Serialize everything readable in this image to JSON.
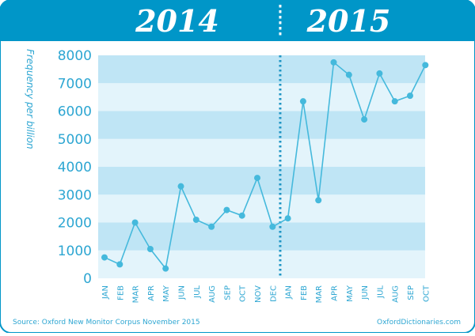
{
  "chart_data": {
    "type": "line",
    "title": "",
    "xlabel": "",
    "ylabel": "Frequency per billion",
    "ylim": [
      0,
      8000
    ],
    "yticks": [
      0,
      1000,
      2000,
      3000,
      4000,
      5000,
      6000,
      7000,
      8000
    ],
    "groups": [
      {
        "label": "2014",
        "categories": [
          "JAN",
          "FEB",
          "MAR",
          "APR",
          "MAY",
          "JUN",
          "JUL",
          "AUG",
          "SEP",
          "OCT",
          "NOV",
          "DEC"
        ]
      },
      {
        "label": "2015",
        "categories": [
          "JAN",
          "FEB",
          "MAR",
          "APR",
          "MAY",
          "JUN",
          "JUL",
          "AUG",
          "SEP",
          "OCT"
        ]
      }
    ],
    "categories": [
      "JAN",
      "FEB",
      "MAR",
      "APR",
      "MAY",
      "JUN",
      "JUL",
      "AUG",
      "SEP",
      "OCT",
      "NOV",
      "DEC",
      "JAN",
      "FEB",
      "MAR",
      "APR",
      "MAY",
      "JUN",
      "JUL",
      "AUG",
      "SEP",
      "OCT"
    ],
    "series": [
      {
        "values": [
          750,
          500,
          2000,
          1050,
          350,
          3300,
          2100,
          1850,
          2450,
          2250,
          3600,
          1850,
          2150,
          6350,
          2800,
          7750,
          7300,
          5700,
          7350,
          6350,
          6550,
          7650
        ]
      }
    ],
    "grid": true,
    "legend": "none",
    "colors": {
      "header": "#0096c8",
      "line": "#45b9dc",
      "band_dark": "#bfe5f5",
      "band_light": "#e3f4fb",
      "axis_text": "#2da6d2",
      "divider": "#1f95c4"
    }
  },
  "footer": {
    "source": "Source: Oxford New Monitor Corpus November 2015",
    "site": "OxfordDictionaries.com"
  }
}
